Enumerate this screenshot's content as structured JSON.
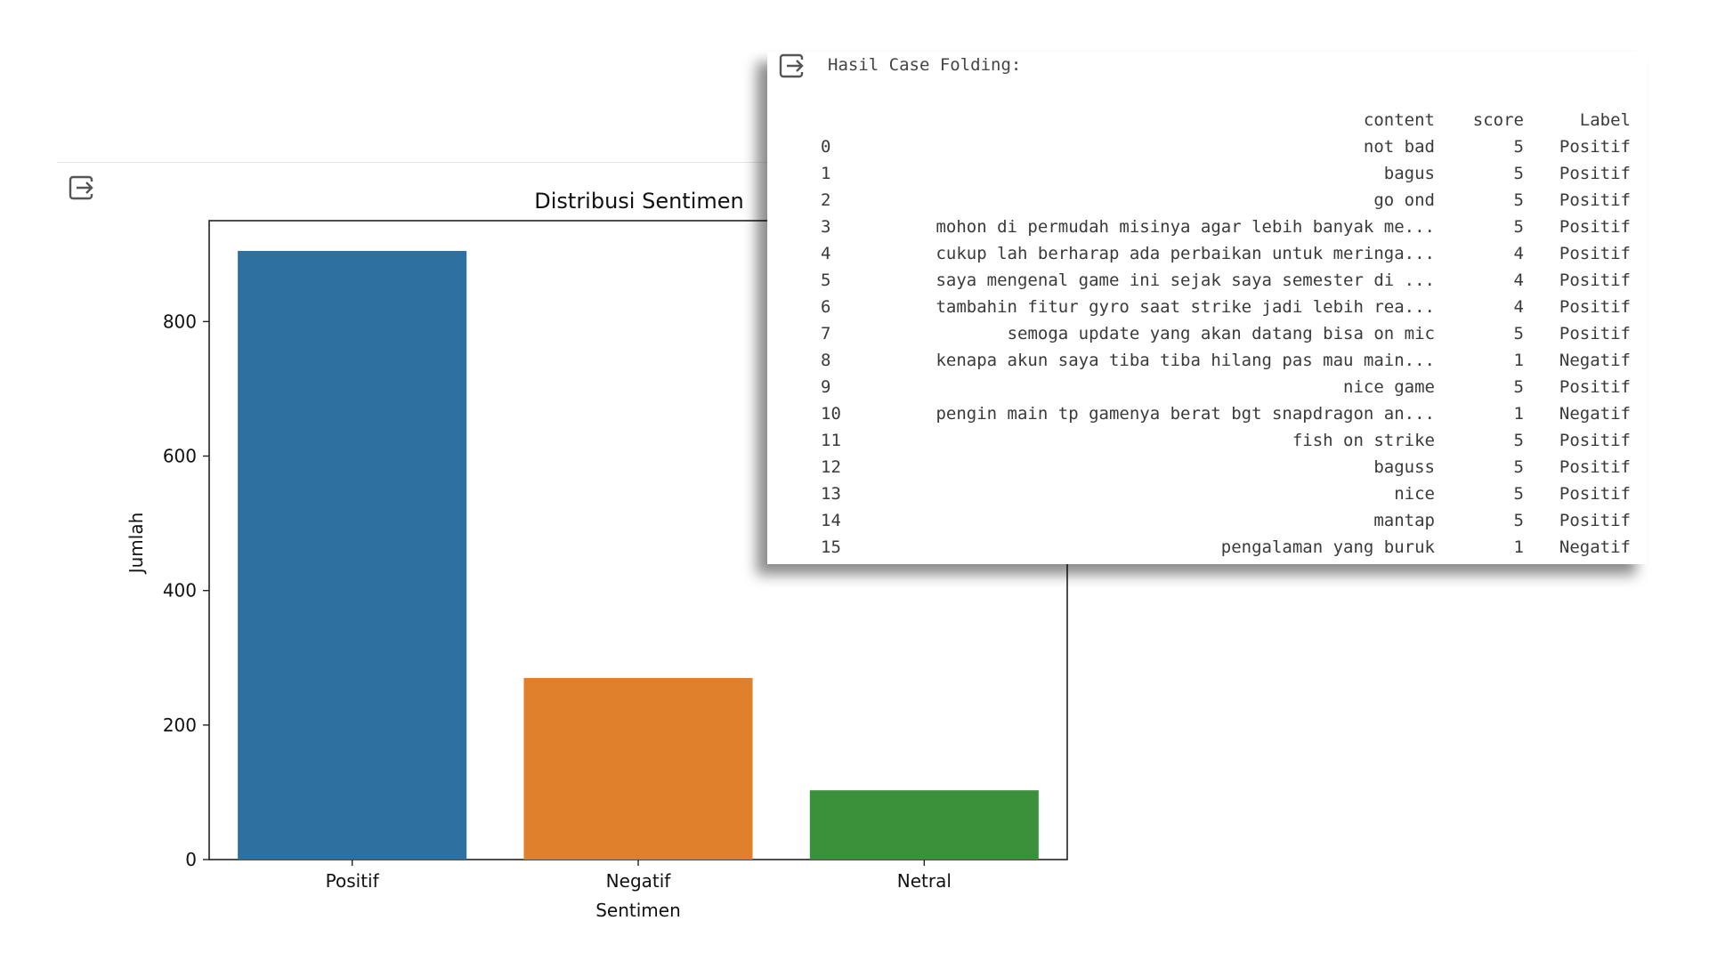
{
  "chart_data": {
    "type": "bar",
    "title": "Distribusi Sentimen",
    "xlabel": "Sentimen",
    "ylabel": "Jumlah",
    "categories": [
      "Positif",
      "Negatif",
      "Netral"
    ],
    "values": [
      905,
      270,
      103
    ],
    "colors": [
      "#2e70a0",
      "#e07f2c",
      "#3a913a"
    ],
    "ylim": [
      0,
      950
    ],
    "yticks": [
      0,
      200,
      400,
      600,
      800
    ],
    "grid": false
  },
  "icons": {
    "output": "output-redirect-icon"
  },
  "dataframe_panel": {
    "heading": "Hasil Case Folding:",
    "columns": [
      "content",
      "score",
      "Label"
    ],
    "rows": [
      {
        "index": "0",
        "content": "not bad",
        "score": "5",
        "label": "Positif"
      },
      {
        "index": "1",
        "content": "bagus",
        "score": "5",
        "label": "Positif"
      },
      {
        "index": "2",
        "content": "go ond",
        "score": "5",
        "label": "Positif"
      },
      {
        "index": "3",
        "content": "mohon di permudah misinya agar lebih banyak me...",
        "score": "5",
        "label": "Positif"
      },
      {
        "index": "4",
        "content": "cukup lah berharap ada perbaikan untuk meringa...",
        "score": "4",
        "label": "Positif"
      },
      {
        "index": "5",
        "content": "saya mengenal game ini sejak saya semester di ...",
        "score": "4",
        "label": "Positif"
      },
      {
        "index": "6",
        "content": "tambahin fitur gyro saat strike jadi lebih rea...",
        "score": "4",
        "label": "Positif"
      },
      {
        "index": "7",
        "content": "semoga update yang akan datang bisa on mic",
        "score": "5",
        "label": "Positif"
      },
      {
        "index": "8",
        "content": "kenapa akun saya tiba tiba hilang pas mau main...",
        "score": "1",
        "label": "Negatif"
      },
      {
        "index": "9",
        "content": "nice game",
        "score": "5",
        "label": "Positif"
      },
      {
        "index": "10",
        "content": "pengin main tp gamenya berat bgt snapdragon an...",
        "score": "1",
        "label": "Negatif"
      },
      {
        "index": "11",
        "content": "fish on strike",
        "score": "5",
        "label": "Positif"
      },
      {
        "index": "12",
        "content": "baguss",
        "score": "5",
        "label": "Positif"
      },
      {
        "index": "13",
        "content": "nice",
        "score": "5",
        "label": "Positif"
      },
      {
        "index": "14",
        "content": "mantap",
        "score": "5",
        "label": "Positif"
      },
      {
        "index": "15",
        "content": "pengalaman yang buruk",
        "score": "1",
        "label": "Negatif"
      }
    ]
  }
}
